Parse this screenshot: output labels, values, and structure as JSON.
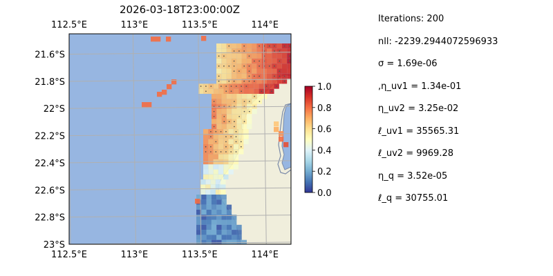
{
  "title": "2026-03-18T23:00:00Z",
  "chart_data": {
    "type": "heatmap",
    "title": "2026-03-18T23:00:00Z",
    "x_ticks": [
      "112.5°E",
      "113°E",
      "113.5°E",
      "114°E"
    ],
    "x_tick_values": [
      112.5,
      113.0,
      113.5,
      114.0
    ],
    "y_ticks": [
      "21.6°S",
      "21.8°S",
      "22°S",
      "22.2°S",
      "22.4°S",
      "22.6°S",
      "22.8°S",
      "23°S"
    ],
    "y_tick_values": [
      -21.6,
      -21.8,
      -22.0,
      -22.2,
      -22.4,
      -22.6,
      -22.8,
      -23.0
    ],
    "xlim": [
      112.5,
      114.2
    ],
    "ylim": [
      -23.0,
      -21.45
    ],
    "grid": true,
    "colorbar": {
      "ticks": [
        "0.0",
        "0.2",
        "0.4",
        "0.6",
        "0.8",
        "1.0"
      ],
      "tick_values": [
        0.0,
        0.2,
        0.4,
        0.6,
        0.8,
        1.0
      ],
      "range": [
        0.0,
        1.0
      ],
      "colormap": "RdYlBu_r"
    },
    "colors": {
      "ocean": "#97b6e1",
      "land": "#f0eedc",
      "grid": "#b0b0b0",
      "coast": "#7a8aa8"
    }
  },
  "stats": [
    "Iterations: 200",
    "nll: -2239.2944072596933",
    "σ = 1.69e-06",
    ",η_uv1 = 1.34e-01",
    "η_uv2 = 3.25e-02",
    "ℓ_uv1 = 35565.31",
    "ℓ_uv2 = 9969.28",
    "η_q = 3.52e-05",
    "ℓ_q = 30755.01"
  ]
}
